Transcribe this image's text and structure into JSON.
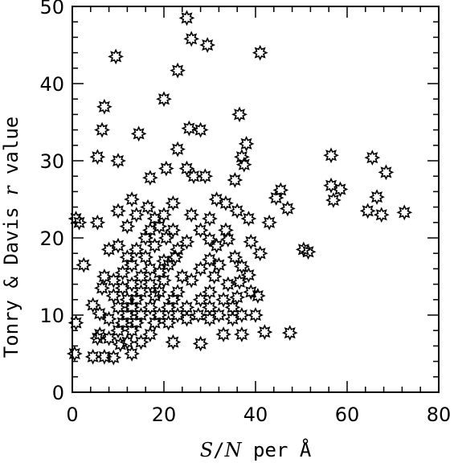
{
  "chart_data": {
    "type": "scatter",
    "title": "",
    "xlabel_parts": {
      "a": "S",
      "b": "/",
      "c": "N",
      "d": " per Å"
    },
    "ylabel_parts": {
      "a": "Tonry & Davis ",
      "b": "r",
      "c": " value"
    },
    "xlim": [
      0,
      80
    ],
    "ylim": [
      0,
      50
    ],
    "xticks": [
      "0",
      "20",
      "40",
      "60",
      "80"
    ],
    "yticks": [
      "0",
      "10",
      "20",
      "30",
      "40",
      "50"
    ],
    "grid": false,
    "marker": "star",
    "points": [
      [
        25,
        48.5
      ],
      [
        26,
        45.8
      ],
      [
        29.5,
        45
      ],
      [
        9.5,
        43.5
      ],
      [
        41,
        44
      ],
      [
        23,
        41.7
      ],
      [
        20,
        38
      ],
      [
        7,
        37
      ],
      [
        36.5,
        36
      ],
      [
        6.5,
        34
      ],
      [
        14.5,
        33.5
      ],
      [
        25.5,
        34.2
      ],
      [
        28,
        34
      ],
      [
        38,
        32.2
      ],
      [
        23,
        31.5
      ],
      [
        5.5,
        30.5
      ],
      [
        10,
        30
      ],
      [
        37,
        30.5
      ],
      [
        56.5,
        30.7
      ],
      [
        65.5,
        30.4
      ],
      [
        37.5,
        29.5
      ],
      [
        68.5,
        28.5
      ],
      [
        20.5,
        29
      ],
      [
        25,
        29
      ],
      [
        29,
        28
      ],
      [
        17,
        27.8
      ],
      [
        26.5,
        28
      ],
      [
        35.5,
        27.5
      ],
      [
        56.5,
        26.8
      ],
      [
        58.5,
        26.3
      ],
      [
        45.5,
        26.2
      ],
      [
        44.5,
        25.2
      ],
      [
        66.5,
        25.3
      ],
      [
        57,
        24.9
      ],
      [
        13,
        25
      ],
      [
        16.5,
        24
      ],
      [
        22,
        24.5
      ],
      [
        31.5,
        25
      ],
      [
        33.5,
        24.5
      ],
      [
        47,
        23.8
      ],
      [
        64.5,
        23.5
      ],
      [
        67.5,
        23
      ],
      [
        72.5,
        23.3
      ],
      [
        10,
        23.5
      ],
      [
        14,
        23
      ],
      [
        18,
        22.5
      ],
      [
        20,
        23
      ],
      [
        26,
        23
      ],
      [
        30,
        22.5
      ],
      [
        36,
        23.5
      ],
      [
        38.5,
        22.5
      ],
      [
        0.8,
        22.5
      ],
      [
        1.5,
        22
      ],
      [
        5.5,
        22
      ],
      [
        43,
        22
      ],
      [
        12,
        21.5
      ],
      [
        17,
        21
      ],
      [
        19,
        21.5
      ],
      [
        22,
        21
      ],
      [
        28,
        21
      ],
      [
        33.5,
        21
      ],
      [
        16,
        20
      ],
      [
        20.5,
        20
      ],
      [
        25,
        19.5
      ],
      [
        30,
        19.8
      ],
      [
        34,
        19.8
      ],
      [
        39,
        19.5
      ],
      [
        8,
        18.5
      ],
      [
        10,
        19
      ],
      [
        14,
        18.5
      ],
      [
        18,
        19
      ],
      [
        23,
        18.5
      ],
      [
        31.5,
        19
      ],
      [
        50.5,
        18.5
      ],
      [
        51.5,
        18.2
      ],
      [
        41,
        18
      ],
      [
        12,
        17.5
      ],
      [
        16,
        17.5
      ],
      [
        20,
        17
      ],
      [
        22.5,
        17.5
      ],
      [
        30,
        17.2
      ],
      [
        35.5,
        17.5
      ],
      [
        13,
        16.5
      ],
      [
        17,
        16
      ],
      [
        21,
        16.5
      ],
      [
        28,
        16
      ],
      [
        32,
        16.5
      ],
      [
        37,
        16.3
      ],
      [
        2.5,
        16.5
      ],
      [
        11,
        15.5
      ],
      [
        15,
        15
      ],
      [
        19,
        15.5
      ],
      [
        24,
        15
      ],
      [
        31,
        15
      ],
      [
        38.5,
        15.2
      ],
      [
        7,
        15
      ],
      [
        9,
        14.5
      ],
      [
        13,
        14
      ],
      [
        17,
        14
      ],
      [
        20,
        14.5
      ],
      [
        26,
        14.5
      ],
      [
        34,
        14
      ],
      [
        36.5,
        14.3
      ],
      [
        11,
        13.5
      ],
      [
        15,
        13
      ],
      [
        19,
        13
      ],
      [
        23,
        13
      ],
      [
        30,
        13
      ],
      [
        39,
        13
      ],
      [
        6.5,
        13.5
      ],
      [
        9,
        12.5
      ],
      [
        12,
        12
      ],
      [
        14,
        12
      ],
      [
        18,
        12.5
      ],
      [
        22,
        12
      ],
      [
        28,
        12
      ],
      [
        33,
        12
      ],
      [
        36,
        12.3
      ],
      [
        40.5,
        12.5
      ],
      [
        10,
        11
      ],
      [
        13,
        11
      ],
      [
        17,
        11
      ],
      [
        21,
        11
      ],
      [
        25,
        11
      ],
      [
        30,
        11
      ],
      [
        35,
        11
      ],
      [
        4.5,
        11.3
      ],
      [
        12,
        10
      ],
      [
        15,
        10
      ],
      [
        19,
        10
      ],
      [
        23,
        10
      ],
      [
        27.5,
        10
      ],
      [
        32,
        10
      ],
      [
        37,
        10
      ],
      [
        6,
        10.2
      ],
      [
        8,
        9.5
      ],
      [
        11,
        9
      ],
      [
        14,
        9
      ],
      [
        18,
        9
      ],
      [
        21,
        9
      ],
      [
        25,
        9.5
      ],
      [
        30,
        9.5
      ],
      [
        35,
        9.5
      ],
      [
        40,
        10
      ],
      [
        0.8,
        9
      ],
      [
        10,
        8
      ],
      [
        13,
        8
      ],
      [
        17,
        7.5
      ],
      [
        33,
        7.5
      ],
      [
        37,
        7.5
      ],
      [
        42,
        7.8
      ],
      [
        47.5,
        7.7
      ],
      [
        6,
        7.5
      ],
      [
        8,
        7
      ],
      [
        12,
        6.5
      ],
      [
        15,
        6.5
      ],
      [
        22,
        6.5
      ],
      [
        28,
        6.3
      ],
      [
        5.5,
        7
      ],
      [
        10.5,
        6.2
      ],
      [
        13,
        5
      ],
      [
        7,
        4.6
      ],
      [
        4.5,
        4.6
      ],
      [
        9,
        4.5
      ],
      [
        0.5,
        5
      ]
    ]
  }
}
